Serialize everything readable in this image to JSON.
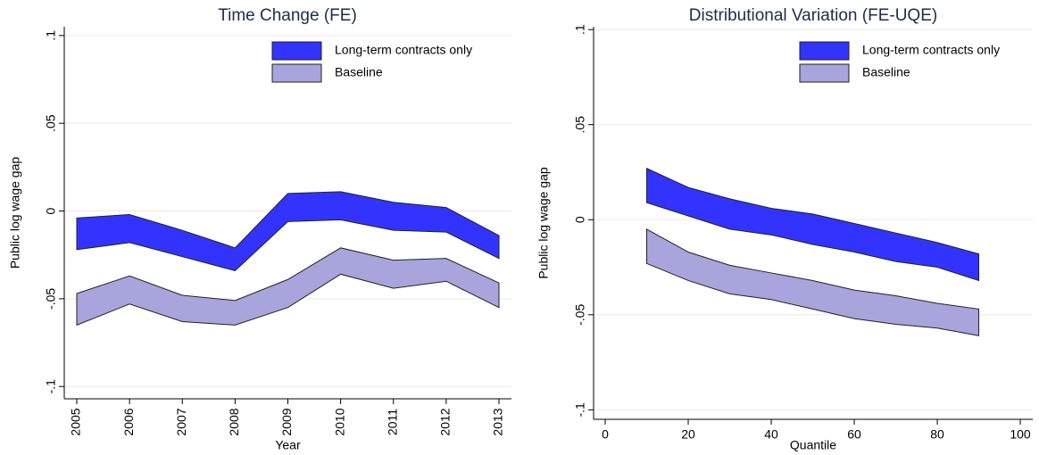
{
  "chart_data": [
    {
      "type": "band",
      "title": "Time Change (FE)",
      "x_label": "Year",
      "y_label": "Public log wage gap",
      "categories": [
        "2005",
        "2006",
        "2007",
        "2008",
        "2009",
        "2010",
        "2011",
        "2012",
        "2013"
      ],
      "ylim": [
        -0.107,
        0.105
      ],
      "yticks": [
        {
          "value": -0.1,
          "label": "-.1"
        },
        {
          "value": -0.05,
          "label": "-.05"
        },
        0,
        {
          "value": 0.05,
          "label": ".05"
        },
        {
          "value": 0.1,
          "label": ".1"
        }
      ],
      "grid": true,
      "legend": "top-right",
      "series": [
        {
          "name": "Long-term contracts only",
          "color": "#3333ff",
          "upper": [
            -0.004,
            -0.002,
            -0.011,
            -0.021,
            0.01,
            0.011,
            0.005,
            0.002,
            -0.014
          ],
          "lower": [
            -0.022,
            -0.018,
            -0.026,
            -0.034,
            -0.006,
            -0.005,
            -0.011,
            -0.012,
            -0.027
          ]
        },
        {
          "name": "Baseline",
          "color": "#a8a4dc",
          "upper": [
            -0.047,
            -0.037,
            -0.048,
            -0.051,
            -0.039,
            -0.021,
            -0.028,
            -0.027,
            -0.041
          ],
          "lower": [
            -0.065,
            -0.053,
            -0.063,
            -0.065,
            -0.055,
            -0.036,
            -0.044,
            -0.04,
            -0.055
          ]
        }
      ]
    },
    {
      "type": "band",
      "title": "Distributional Variation (FE-UQE)",
      "x_label": "Quantile",
      "y_label": "Public log wage gap",
      "x": [
        10,
        20,
        30,
        40,
        50,
        60,
        70,
        80,
        90
      ],
      "xlim": [
        -2.8,
        103
      ],
      "xticks": [
        0,
        20,
        40,
        60,
        80,
        100
      ],
      "ylim": [
        -0.105,
        0.1015
      ],
      "yticks": [
        {
          "value": -0.1,
          "label": "-.1"
        },
        {
          "value": -0.05,
          "label": "-.05"
        },
        0,
        {
          "value": 0.05,
          "label": ".05"
        },
        {
          "value": 0.1,
          "label": ".1"
        }
      ],
      "grid": true,
      "legend": "top-right",
      "series": [
        {
          "name": "Long-term contracts only",
          "color": "#3333ff",
          "upper": [
            0.027,
            0.017,
            0.011,
            0.006,
            0.003,
            -0.002,
            -0.007,
            -0.012,
            -0.018
          ],
          "lower": [
            0.009,
            0.002,
            -0.005,
            -0.008,
            -0.013,
            -0.017,
            -0.022,
            -0.025,
            -0.032
          ]
        },
        {
          "name": "Baseline",
          "color": "#a8a4dc",
          "upper": [
            -0.005,
            -0.017,
            -0.024,
            -0.028,
            -0.032,
            -0.037,
            -0.04,
            -0.044,
            -0.047
          ],
          "lower": [
            -0.023,
            -0.032,
            -0.039,
            -0.042,
            -0.047,
            -0.052,
            -0.055,
            -0.057,
            -0.061
          ]
        }
      ]
    }
  ]
}
